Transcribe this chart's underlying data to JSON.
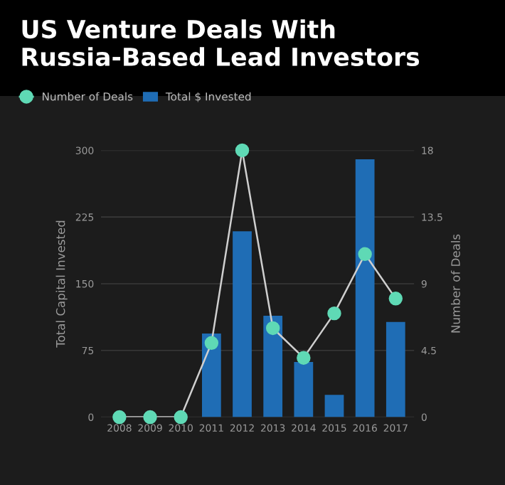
{
  "chart_data": {
    "type": "bar",
    "title": "US Venture Deals With Russia-Based Lead Investors",
    "categories": [
      "2008",
      "2009",
      "2010",
      "2011",
      "2012",
      "2013",
      "2014",
      "2015",
      "2016",
      "2017"
    ],
    "series": [
      {
        "name": "Number of Deals",
        "type": "line",
        "axis": "y2",
        "color": "#5fd9b5",
        "marker": "circle",
        "values": [
          0,
          0,
          0,
          5,
          18,
          6,
          4,
          7,
          11,
          8
        ]
      },
      {
        "name": "Total $ Invested",
        "color": "#1f6db5",
        "values": [
          0,
          0,
          0,
          94,
          209,
          114,
          62,
          25,
          290,
          107
        ]
      }
    ],
    "ylabel": "Total Capital Invested",
    "y2label": "Number of Deals",
    "ylim": [
      0,
      300
    ],
    "yticks": [
      0,
      75,
      150,
      225,
      300
    ],
    "y2lim": [
      0,
      18
    ],
    "y2ticks": [
      0,
      {
        "value": 4.5,
        "label": "4.5"
      },
      9,
      {
        "value": 13.5,
        "label": "13.5"
      },
      18
    ],
    "grid": "y",
    "legend": "top left"
  }
}
